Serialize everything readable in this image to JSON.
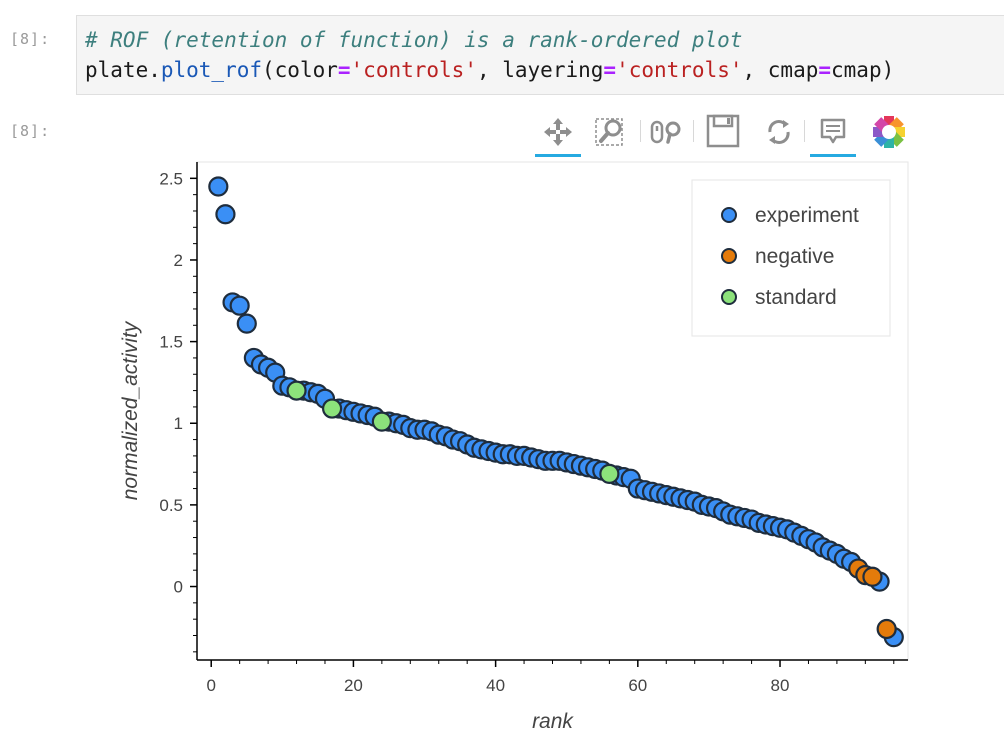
{
  "cell": {
    "input_prompt": "[8]:",
    "output_prompt": "[8]:",
    "code_comment": "# ROF (retention of function) is a rank-ordered plot",
    "code": {
      "obj": "plate.",
      "func": "plot_rof",
      "open": "(color",
      "eq": "=",
      "arg1": "'controls'",
      "sep": ", layering",
      "arg2": "'controls'",
      "tail": ", cmap",
      "arg3": "cmap)"
    }
  },
  "toolbar": {
    "tools": [
      {
        "name": "pan-icon",
        "active": true
      },
      {
        "name": "box-zoom-icon",
        "active": false
      },
      {
        "name": "wheel-zoom-icon",
        "active": false
      },
      {
        "name": "save-icon",
        "active": false
      },
      {
        "name": "reset-icon",
        "active": false
      },
      {
        "name": "hover-icon",
        "active": true
      },
      {
        "name": "bokeh-logo",
        "active": false
      }
    ],
    "accent": "#26aae1"
  },
  "chart_data": {
    "type": "scatter",
    "title": "",
    "xlabel": "rank",
    "ylabel": "normalized_activity",
    "xlim": [
      -2,
      98
    ],
    "ylim": [
      -0.45,
      2.6
    ],
    "xticks": [
      "0",
      "20",
      "40",
      "60",
      "80"
    ],
    "yticks": [
      "0",
      "0.5",
      "1",
      "1.5",
      "2",
      "2.5"
    ],
    "grid": false,
    "legend_position": "top-right",
    "series": [
      {
        "name": "experiment",
        "color": "#3a8ff5",
        "x": [
          1,
          2,
          3,
          4,
          5,
          6,
          7,
          8,
          9,
          10,
          11,
          13,
          14,
          15,
          16,
          18,
          19,
          20,
          21,
          22,
          23,
          25,
          26,
          27,
          28,
          29,
          30,
          31,
          32,
          33,
          34,
          35,
          36,
          37,
          38,
          39,
          40,
          41,
          42,
          43,
          44,
          45,
          46,
          47,
          48,
          49,
          50,
          51,
          52,
          53,
          54,
          55,
          57,
          58,
          59,
          60,
          61,
          62,
          63,
          64,
          65,
          66,
          67,
          68,
          69,
          70,
          71,
          72,
          73,
          74,
          75,
          76,
          77,
          78,
          79,
          80,
          81,
          82,
          83,
          84,
          85,
          86,
          87,
          88,
          89,
          90,
          94,
          96
        ],
        "y": [
          2.45,
          2.28,
          1.74,
          1.72,
          1.61,
          1.4,
          1.36,
          1.34,
          1.31,
          1.23,
          1.22,
          1.2,
          1.19,
          1.18,
          1.15,
          1.09,
          1.08,
          1.07,
          1.06,
          1.05,
          1.04,
          1.01,
          1.0,
          0.99,
          0.97,
          0.96,
          0.96,
          0.95,
          0.93,
          0.92,
          0.9,
          0.89,
          0.87,
          0.85,
          0.84,
          0.83,
          0.82,
          0.81,
          0.81,
          0.8,
          0.8,
          0.79,
          0.78,
          0.77,
          0.77,
          0.77,
          0.76,
          0.75,
          0.74,
          0.73,
          0.72,
          0.71,
          0.68,
          0.67,
          0.66,
          0.6,
          0.59,
          0.58,
          0.57,
          0.56,
          0.55,
          0.54,
          0.53,
          0.52,
          0.5,
          0.49,
          0.48,
          0.46,
          0.44,
          0.43,
          0.42,
          0.41,
          0.39,
          0.38,
          0.37,
          0.36,
          0.35,
          0.33,
          0.31,
          0.29,
          0.27,
          0.24,
          0.22,
          0.2,
          0.17,
          0.15,
          0.03,
          -0.31
        ]
      },
      {
        "name": "negative",
        "color": "#e47b0b",
        "x": [
          91,
          92,
          93,
          95
        ],
        "y": [
          0.11,
          0.07,
          0.06,
          -0.26
        ]
      },
      {
        "name": "standard",
        "color": "#8ce27b",
        "x": [
          12,
          17,
          24,
          56
        ],
        "y": [
          1.2,
          1.09,
          1.01,
          0.69
        ]
      }
    ]
  }
}
